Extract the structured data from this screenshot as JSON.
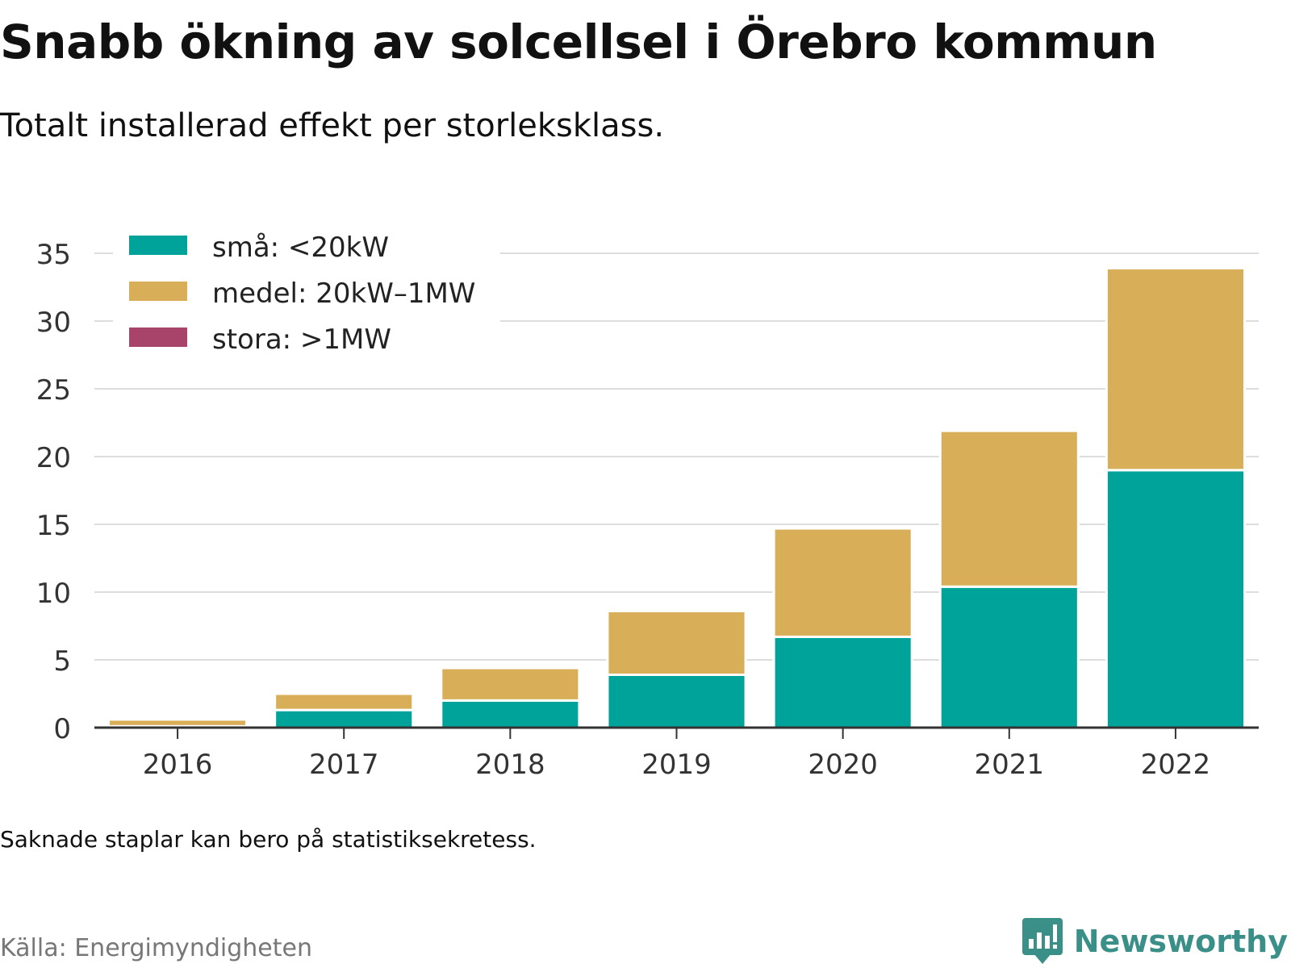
{
  "header": {
    "title": "Snabb ökning av solcellsel i Örebro kommun",
    "subtitle": "Totalt installerad effekt per storleksklass."
  },
  "footer": {
    "note": "Saknade staplar kan bero på statistiksekretess.",
    "source": "Källa: Energimyndigheten",
    "brand": "Newsworthy",
    "brand_icon": "bar-chart-bubble-icon"
  },
  "colors": {
    "small": "#00a39a",
    "medium": "#d9ae58",
    "large": "#a8436a",
    "grid": "#dddddd",
    "axis": "#333333",
    "brand": "#3a8f88"
  },
  "chart_data": {
    "type": "bar",
    "stacked": true,
    "categories": [
      "2016",
      "2017",
      "2018",
      "2019",
      "2020",
      "2021",
      "2022"
    ],
    "series": [
      {
        "name": "små: <20kW",
        "color": "#00a39a",
        "values": [
          0.1,
          1.3,
          2.0,
          3.9,
          6.7,
          10.4,
          19.0
        ]
      },
      {
        "name": "medel: 20kW–1MW",
        "color": "#d9ae58",
        "values": [
          0.5,
          1.2,
          2.4,
          4.7,
          8.0,
          11.5,
          14.9
        ]
      },
      {
        "name": "stora: >1MW",
        "color": "#a8436a",
        "values": [
          0,
          0,
          0,
          0,
          0,
          0,
          0
        ]
      }
    ],
    "ylim": [
      0,
      35
    ],
    "yticks": [
      0,
      5,
      10,
      15,
      20,
      25,
      30,
      35
    ],
    "grid": true,
    "legend": "top-left"
  }
}
